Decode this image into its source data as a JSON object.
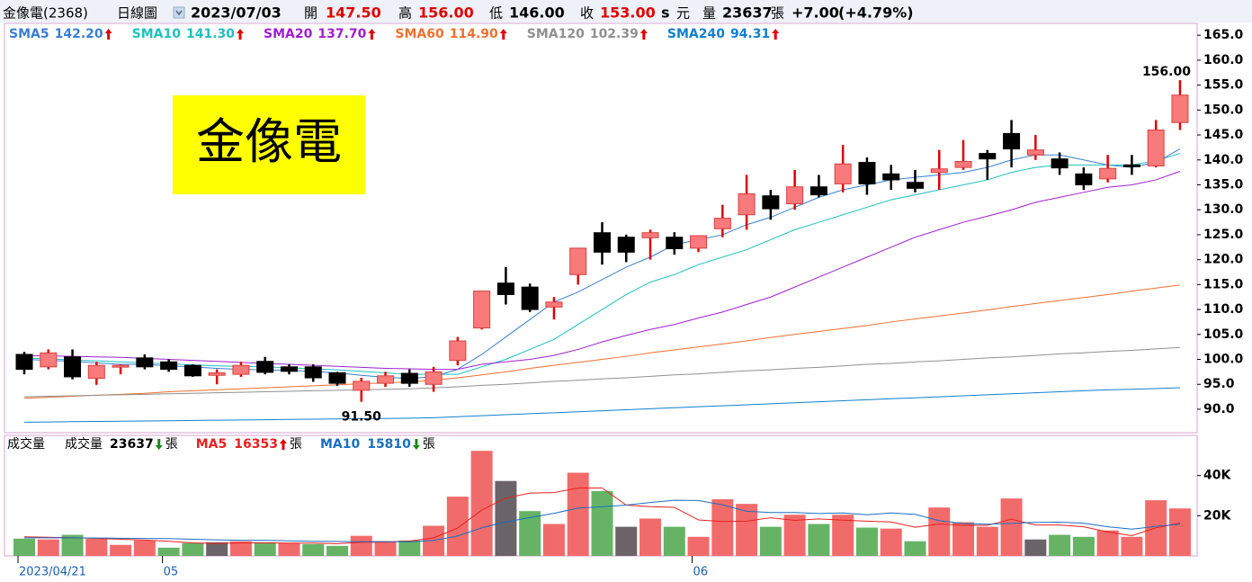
{
  "header": {
    "name": "金像電(2368)",
    "period": "日線圖",
    "date": "2023/07/03",
    "open_label": "開",
    "open": "147.50",
    "high_label": "高",
    "high": "156.00",
    "low_label": "低",
    "low": "146.00",
    "close_label": "收",
    "close": "153.00",
    "s": "s",
    "currency": "元",
    "volume_label": "量",
    "volume": "23637",
    "unit": "張",
    "change": "+7.00",
    "change_pct": "(+4.79%)"
  },
  "overlay_title": "金像電",
  "chart_data": [
    {
      "type": "candlestick",
      "categories": [
        "2023/04/21",
        null,
        null,
        null,
        null,
        null,
        "05",
        null,
        null,
        null,
        null,
        null,
        null,
        null,
        null,
        null,
        null,
        null,
        null,
        null,
        null,
        null,
        null,
        null,
        null,
        null,
        null,
        null,
        "06",
        null,
        null,
        null,
        null,
        null,
        null,
        null,
        null,
        null,
        null,
        null,
        null,
        null,
        null,
        null,
        null,
        null,
        null,
        null,
        null
      ],
      "open": [
        101,
        98.5,
        100.5,
        96.2,
        98.5,
        100.3,
        99.5,
        98.8,
        96.8,
        97,
        99.6,
        98.5,
        98.5,
        97.3,
        93.8,
        95.2,
        97.2,
        95,
        99.8,
        106.3,
        115.3,
        114.5,
        110.5,
        117,
        125.4,
        124.5,
        124.4,
        124.5,
        122.3,
        126.2,
        129,
        132.8,
        131.2,
        134.6,
        135.2,
        139.5,
        137.2,
        135.5,
        137.5,
        138.5,
        141.3,
        145.3,
        141,
        140.2,
        137.2,
        136.2,
        139,
        138.8,
        147.5
      ],
      "high": [
        101.5,
        102,
        102,
        99.5,
        99,
        101,
        100,
        99,
        98,
        99.5,
        100.5,
        99,
        99,
        97.5,
        96.3,
        97.5,
        98,
        98.5,
        104.5,
        113.7,
        118.5,
        115.2,
        112.5,
        122.3,
        127.5,
        125,
        126,
        125.5,
        124.8,
        131,
        137,
        134,
        138,
        137,
        143,
        140.5,
        139,
        138,
        142,
        144,
        142,
        148,
        145,
        141.5,
        138.5,
        141,
        141,
        148,
        156
      ],
      "low": [
        97,
        98,
        96,
        94.9,
        97,
        98,
        97.5,
        96.5,
        95,
        96.5,
        97,
        97,
        95.5,
        94.7,
        91.5,
        94.5,
        94.5,
        93.5,
        98.8,
        106,
        111,
        109.5,
        108,
        115,
        119,
        119.5,
        120,
        121,
        121.5,
        124.5,
        126,
        128,
        130,
        132.5,
        133.5,
        133,
        134,
        133.5,
        134,
        138,
        136,
        138.5,
        140,
        137,
        134,
        135.5,
        137,
        138.5,
        146
      ],
      "close": [
        98,
        101.3,
        96.5,
        98.8,
        98.8,
        98.5,
        98,
        96.7,
        97.3,
        98.8,
        97.4,
        97.6,
        96.3,
        95.2,
        95.6,
        96.7,
        95.2,
        97.5,
        103.7,
        113.7,
        113,
        110,
        111.5,
        122.3,
        121.5,
        121.5,
        125.4,
        122.2,
        124.8,
        128.3,
        133.2,
        130.2,
        134.6,
        133,
        139.2,
        135.2,
        136,
        134.3,
        138.2,
        139.7,
        140.2,
        142.2,
        142,
        138.4,
        135,
        138.3,
        138.8,
        146,
        153
      ],
      "up_color": "#f87a7a",
      "down_color": "#000000",
      "series": [
        {
          "name": "SMA5",
          "color": "#3a7fd5",
          "legend_value": "142.20",
          "arrow": "up",
          "values": [
            100,
            99.8,
            99.6,
            99.3,
            99,
            99,
            98.7,
            98.5,
            98.2,
            98,
            97.9,
            97.8,
            97.6,
            97.3,
            96.8,
            96.4,
            96.2,
            96.5,
            98,
            101,
            104.5,
            108,
            111.5,
            113.5,
            116,
            118.5,
            120.5,
            123,
            124,
            125,
            127,
            128.5,
            130.5,
            132.5,
            134,
            135,
            136,
            136.5,
            137,
            137.5,
            138.5,
            140,
            141,
            141,
            140,
            139,
            138.5,
            139.5,
            142.2
          ]
        },
        {
          "name": "SMA10",
          "color": "#20c0c0",
          "legend_value": "141.30",
          "arrow": "up",
          "values": [
            100.3,
            100.1,
            99.9,
            99.7,
            99.5,
            99.3,
            99.1,
            98.9,
            98.7,
            98.6,
            98.5,
            98.3,
            98.1,
            97.9,
            97.6,
            97.3,
            97,
            97,
            97,
            98.5,
            100,
            102,
            104,
            107,
            110,
            113,
            115.5,
            117,
            119,
            120.5,
            122,
            124,
            126,
            127.5,
            129,
            130.5,
            132,
            133,
            134,
            135,
            136,
            137.5,
            138.5,
            139,
            139,
            139,
            139,
            139.8,
            141.3
          ]
        },
        {
          "name": "SMA20",
          "color": "#a020d0",
          "legend_value": "137.70",
          "arrow": "up",
          "values": [
            100.8,
            100.7,
            100.6,
            100.5,
            100.4,
            100.2,
            100,
            99.8,
            99.6,
            99.4,
            99.2,
            99,
            98.8,
            98.6,
            98.4,
            98.2,
            98.1,
            98,
            98,
            99,
            99.5,
            100,
            100.8,
            102,
            103.5,
            104.8,
            106,
            107,
            108.3,
            109.5,
            111,
            112.5,
            114.5,
            116.5,
            118.5,
            120.5,
            122.5,
            124.5,
            126,
            127.5,
            128.7,
            130,
            131.5,
            132.5,
            133.5,
            134.5,
            135,
            136,
            137.7
          ]
        },
        {
          "name": "SMA60",
          "color": "#f07030",
          "legend_value": "114.90",
          "arrow": "up",
          "values": [
            92.2,
            92.4,
            92.6,
            92.8,
            93,
            93.2,
            93.5,
            93.7,
            93.9,
            94.1,
            94.3,
            94.5,
            94.7,
            94.9,
            95.1,
            95.3,
            95.5,
            95.8,
            96.3,
            96.9,
            97.5,
            98.2,
            98.8,
            99.4,
            100,
            100.6,
            101.3,
            101.9,
            102.5,
            103.1,
            103.7,
            104.4,
            105,
            105.6,
            106.2,
            106.8,
            107.5,
            108.1,
            108.7,
            109.3,
            109.9,
            110.6,
            111.2,
            111.8,
            112.4,
            113,
            113.7,
            114.3,
            114.9
          ]
        },
        {
          "name": "SMA120",
          "color": "#909090",
          "legend_value": "102.39",
          "arrow": "up",
          "values": [
            92.5,
            92.6,
            92.7,
            92.8,
            92.9,
            93,
            93.1,
            93.2,
            93.3,
            93.4,
            93.5,
            93.6,
            93.7,
            93.8,
            93.9,
            94,
            94.1,
            94.3,
            94.5,
            94.8,
            95,
            95.3,
            95.6,
            95.8,
            96.1,
            96.3,
            96.6,
            96.9,
            97.1,
            97.4,
            97.7,
            97.9,
            98.2,
            98.4,
            98.7,
            99,
            99.2,
            99.5,
            99.7,
            100,
            100.3,
            100.5,
            100.8,
            101.1,
            101.3,
            101.6,
            101.8,
            102.1,
            102.39
          ]
        },
        {
          "name": "SMA240",
          "color": "#1080d0",
          "legend_value": "94.31",
          "arrow": "up",
          "values": [
            87.4,
            87.45,
            87.5,
            87.55,
            87.6,
            87.65,
            87.7,
            87.75,
            87.8,
            87.85,
            87.9,
            87.95,
            88,
            88.05,
            88.1,
            88.15,
            88.2,
            88.3,
            88.5,
            88.7,
            88.9,
            89.1,
            89.3,
            89.5,
            89.7,
            89.9,
            90.1,
            90.3,
            90.5,
            90.7,
            90.9,
            91.1,
            91.3,
            91.5,
            91.7,
            91.9,
            92.1,
            92.3,
            92.5,
            92.7,
            92.9,
            93.1,
            93.3,
            93.5,
            93.7,
            93.9,
            94,
            94.15,
            94.31
          ]
        }
      ],
      "ylim": [
        85.3,
        167.2
      ],
      "yticks": [
        {
          "value": 165,
          "label": "165.0"
        },
        {
          "value": 160,
          "label": "160.0"
        },
        {
          "value": 155,
          "label": "155.0"
        },
        {
          "value": 150,
          "label": "150.0"
        },
        {
          "value": 145,
          "label": "145.0"
        },
        {
          "value": 140,
          "label": "140.0"
        },
        {
          "value": 135,
          "label": "135.0"
        },
        {
          "value": 130,
          "label": "130.0"
        },
        {
          "value": 125,
          "label": "125.0"
        },
        {
          "value": 120,
          "label": "120.0"
        },
        {
          "value": 115,
          "label": "115.0"
        },
        {
          "value": 110,
          "label": "110.0"
        },
        {
          "value": 105,
          "label": "105.0"
        },
        {
          "value": 100,
          "label": "100.0"
        },
        {
          "value": 95,
          "label": "95.0"
        },
        {
          "value": 90,
          "label": "90.0"
        }
      ],
      "annotations": {
        "high": "156.00",
        "low": "91.50"
      }
    },
    {
      "type": "bar",
      "title": "成交量",
      "volume_name": "成交量",
      "volume_label": "23637",
      "volume_arrow": "down",
      "unit": "張",
      "values": [
        8600,
        8200,
        10500,
        8600,
        5500,
        7700,
        4100,
        6400,
        6800,
        7300,
        6800,
        6400,
        5900,
        5000,
        10000,
        7300,
        7700,
        15000,
        29500,
        52300,
        37300,
        22300,
        15900,
        41400,
        32300,
        14500,
        18600,
        14500,
        9500,
        28200,
        25900,
        14500,
        20500,
        15900,
        20500,
        14100,
        13600,
        7300,
        24100,
        16800,
        14500,
        28600,
        8200,
        10500,
        9500,
        12700,
        9500,
        27700,
        23637
      ],
      "colors": [
        "#66b366",
        "#f26b6b",
        "#66b366",
        "#f26b6b",
        "#f26b6b",
        "#f26b6b",
        "#66b366",
        "#66b366",
        "#6a6468",
        "#f26b6b",
        "#66b366",
        "#f26b6b",
        "#66b366",
        "#66b366",
        "#f26b6b",
        "#f26b6b",
        "#66b366",
        "#f26b6b",
        "#f26b6b",
        "#f26b6b",
        "#6a6468",
        "#66b366",
        "#f26b6b",
        "#f26b6b",
        "#66b366",
        "#6a6468",
        "#f26b6b",
        "#66b366",
        "#f26b6b",
        "#f26b6b",
        "#f26b6b",
        "#66b366",
        "#f26b6b",
        "#66b366",
        "#f26b6b",
        "#66b366",
        "#f26b6b",
        "#66b366",
        "#f26b6b",
        "#f26b6b",
        "#f26b6b",
        "#f26b6b",
        "#6a6468",
        "#66b366",
        "#66b366",
        "#f26b6b",
        "#f26b6b",
        "#f26b6b",
        "#f26b6b"
      ],
      "series": [
        {
          "name": "MA5",
          "color": "#e82020",
          "legend_value": "16353",
          "arrow": "up",
          "values": [
            9500,
            9300,
            9000,
            8800,
            8300,
            7900,
            7300,
            6500,
            6200,
            6500,
            6500,
            6400,
            6400,
            6100,
            6800,
            6900,
            7400,
            9000,
            13900,
            22800,
            28800,
            31300,
            31500,
            33800,
            33800,
            25300,
            24500,
            24200,
            17900,
            17100,
            17300,
            19000,
            17700,
            18400,
            17800,
            17300,
            16900,
            14300,
            15900,
            15200,
            15200,
            18300,
            15400,
            15400,
            14500,
            11900,
            10100,
            14000,
            16353
          ]
        },
        {
          "name": "MA10",
          "color": "#1a6fc0",
          "legend_value": "15810",
          "arrow": "down",
          "values": [
            9000,
            9000,
            9000,
            8900,
            8800,
            8700,
            8600,
            8300,
            8000,
            7800,
            7800,
            7500,
            7300,
            7200,
            7100,
            7100,
            7000,
            7700,
            9900,
            14000,
            16900,
            19100,
            21200,
            23800,
            24500,
            25300,
            26600,
            27700,
            27600,
            25400,
            22200,
            21600,
            21600,
            21100,
            21400,
            20500,
            21400,
            20700,
            17500,
            16100,
            15800,
            16200,
            16700,
            16800,
            16300,
            14500,
            13300,
            14700,
            15810
          ]
        }
      ],
      "ylim": [
        0,
        60000
      ],
      "yticks": [
        {
          "value": 40000,
          "label": "40K"
        },
        {
          "value": 20000,
          "label": "20K"
        }
      ]
    }
  ]
}
